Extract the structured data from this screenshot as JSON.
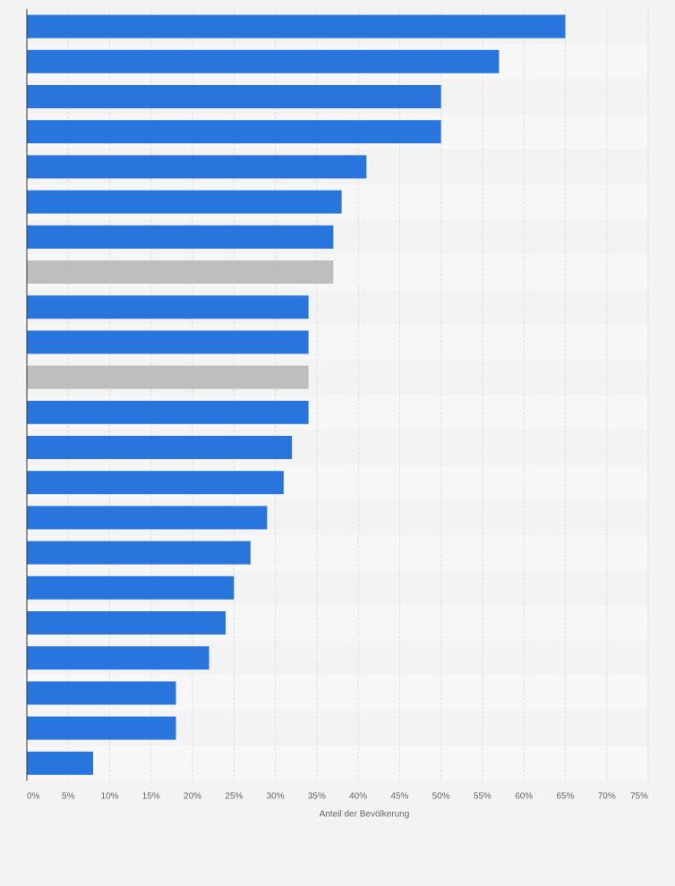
{
  "chart_data": {
    "type": "bar",
    "orientation": "horizontal",
    "values": [
      65,
      57,
      50,
      50,
      41,
      38,
      37,
      37,
      34,
      34,
      34,
      34,
      32,
      31,
      29,
      27,
      25,
      24,
      22,
      18,
      18,
      8
    ],
    "highlighted": [
      false,
      false,
      false,
      false,
      false,
      false,
      false,
      true,
      false,
      false,
      true,
      false,
      false,
      false,
      false,
      false,
      false,
      false,
      false,
      false,
      false,
      false
    ],
    "xlim": [
      0,
      75
    ],
    "x_ticks": [
      0,
      5,
      10,
      15,
      20,
      25,
      30,
      35,
      40,
      45,
      50,
      55,
      60,
      65,
      70,
      75
    ],
    "x_tick_labels": [
      "0%",
      "5%",
      "10%",
      "15%",
      "20%",
      "25%",
      "30%",
      "35%",
      "40%",
      "45%",
      "50%",
      "55%",
      "60%",
      "65%",
      "70%",
      "75%"
    ],
    "xlabel": "Anteil der Bevölkerung",
    "ylabel": "",
    "title": "",
    "grid": true,
    "legend": "none"
  },
  "colors": {
    "bar": "#2876dd",
    "bar_highlight": "#bebebe",
    "band_dark": "#f3f3f3",
    "band_light": "#f7f7f7",
    "gridline": "#dedede",
    "axis": "#333333",
    "text": "#666666",
    "background": "#f3f3f3"
  }
}
